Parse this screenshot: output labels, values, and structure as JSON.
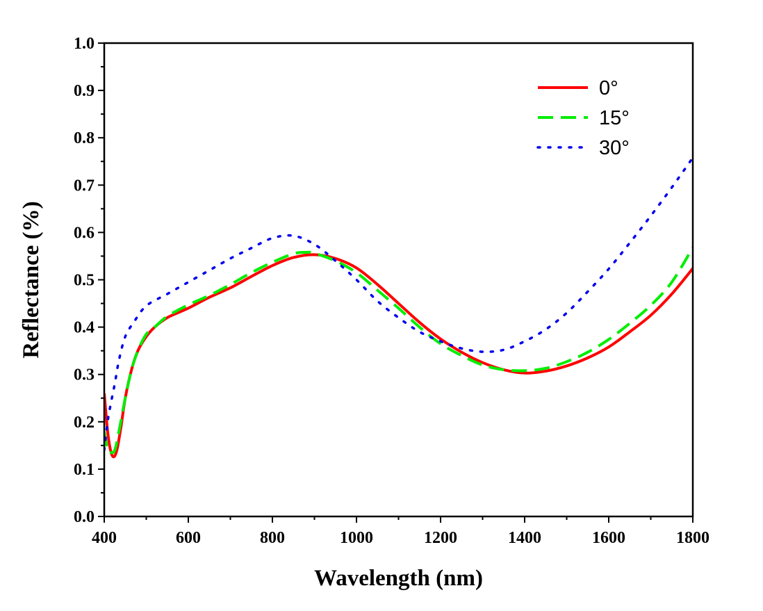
{
  "chart_data": {
    "type": "line",
    "title": "",
    "xlabel": "Wavelength (nm)",
    "ylabel": "Reflectance (%)",
    "xlim": [
      400,
      1800
    ],
    "ylim": [
      0.0,
      1.0
    ],
    "x_ticks": [
      "400",
      "600",
      "800",
      "1000",
      "1200",
      "1400",
      "1600",
      "1800"
    ],
    "y_ticks": [
      "0.0",
      "0.1",
      "0.2",
      "0.3",
      "0.4",
      "0.5",
      "0.6",
      "0.7",
      "0.8",
      "0.9",
      "1.0"
    ],
    "grid": false,
    "legend_position": "top-right",
    "series": [
      {
        "name": "0°",
        "color": "#ff0000",
        "style": "solid",
        "points": [
          [
            400,
            0.26
          ],
          [
            408,
            0.18
          ],
          [
            415,
            0.14
          ],
          [
            422,
            0.126
          ],
          [
            430,
            0.14
          ],
          [
            440,
            0.19
          ],
          [
            450,
            0.25
          ],
          [
            465,
            0.31
          ],
          [
            480,
            0.35
          ],
          [
            500,
            0.38
          ],
          [
            520,
            0.4
          ],
          [
            550,
            0.42
          ],
          [
            600,
            0.44
          ],
          [
            650,
            0.463
          ],
          [
            700,
            0.483
          ],
          [
            750,
            0.507
          ],
          [
            800,
            0.53
          ],
          [
            850,
            0.547
          ],
          [
            900,
            0.553
          ],
          [
            950,
            0.545
          ],
          [
            1000,
            0.525
          ],
          [
            1050,
            0.49
          ],
          [
            1100,
            0.45
          ],
          [
            1150,
            0.41
          ],
          [
            1200,
            0.375
          ],
          [
            1250,
            0.347
          ],
          [
            1300,
            0.325
          ],
          [
            1350,
            0.31
          ],
          [
            1400,
            0.303
          ],
          [
            1450,
            0.307
          ],
          [
            1500,
            0.318
          ],
          [
            1550,
            0.335
          ],
          [
            1600,
            0.358
          ],
          [
            1650,
            0.39
          ],
          [
            1700,
            0.425
          ],
          [
            1750,
            0.47
          ],
          [
            1800,
            0.524
          ]
        ]
      },
      {
        "name": "15°",
        "color": "#00ee00",
        "style": "dashed",
        "points": [
          [
            400,
            0.18
          ],
          [
            408,
            0.14
          ],
          [
            415,
            0.135
          ],
          [
            425,
            0.14
          ],
          [
            435,
            0.18
          ],
          [
            450,
            0.25
          ],
          [
            465,
            0.31
          ],
          [
            480,
            0.35
          ],
          [
            500,
            0.385
          ],
          [
            520,
            0.4
          ],
          [
            550,
            0.423
          ],
          [
            600,
            0.447
          ],
          [
            650,
            0.467
          ],
          [
            700,
            0.49
          ],
          [
            750,
            0.515
          ],
          [
            800,
            0.537
          ],
          [
            850,
            0.555
          ],
          [
            880,
            0.558
          ],
          [
            900,
            0.556
          ],
          [
            950,
            0.54
          ],
          [
            1000,
            0.515
          ],
          [
            1050,
            0.478
          ],
          [
            1100,
            0.44
          ],
          [
            1150,
            0.4
          ],
          [
            1200,
            0.365
          ],
          [
            1250,
            0.34
          ],
          [
            1300,
            0.32
          ],
          [
            1350,
            0.31
          ],
          [
            1400,
            0.308
          ],
          [
            1450,
            0.313
          ],
          [
            1500,
            0.327
          ],
          [
            1550,
            0.347
          ],
          [
            1600,
            0.374
          ],
          [
            1650,
            0.408
          ],
          [
            1700,
            0.446
          ],
          [
            1750,
            0.495
          ],
          [
            1800,
            0.568
          ]
        ]
      },
      {
        "name": "30°",
        "color": "#0000ee",
        "style": "dotted",
        "points": [
          [
            400,
            0.14
          ],
          [
            408,
            0.2
          ],
          [
            416,
            0.24
          ],
          [
            425,
            0.28
          ],
          [
            435,
            0.33
          ],
          [
            450,
            0.38
          ],
          [
            470,
            0.41
          ],
          [
            500,
            0.445
          ],
          [
            550,
            0.47
          ],
          [
            600,
            0.495
          ],
          [
            650,
            0.52
          ],
          [
            700,
            0.545
          ],
          [
            750,
            0.567
          ],
          [
            800,
            0.588
          ],
          [
            850,
            0.593
          ],
          [
            900,
            0.575
          ],
          [
            950,
            0.54
          ],
          [
            1000,
            0.5
          ],
          [
            1050,
            0.455
          ],
          [
            1100,
            0.42
          ],
          [
            1150,
            0.39
          ],
          [
            1200,
            0.37
          ],
          [
            1250,
            0.355
          ],
          [
            1300,
            0.348
          ],
          [
            1350,
            0.352
          ],
          [
            1400,
            0.37
          ],
          [
            1450,
            0.395
          ],
          [
            1500,
            0.43
          ],
          [
            1550,
            0.475
          ],
          [
            1600,
            0.523
          ],
          [
            1650,
            0.578
          ],
          [
            1700,
            0.635
          ],
          [
            1750,
            0.695
          ],
          [
            1800,
            0.758
          ]
        ]
      }
    ]
  }
}
